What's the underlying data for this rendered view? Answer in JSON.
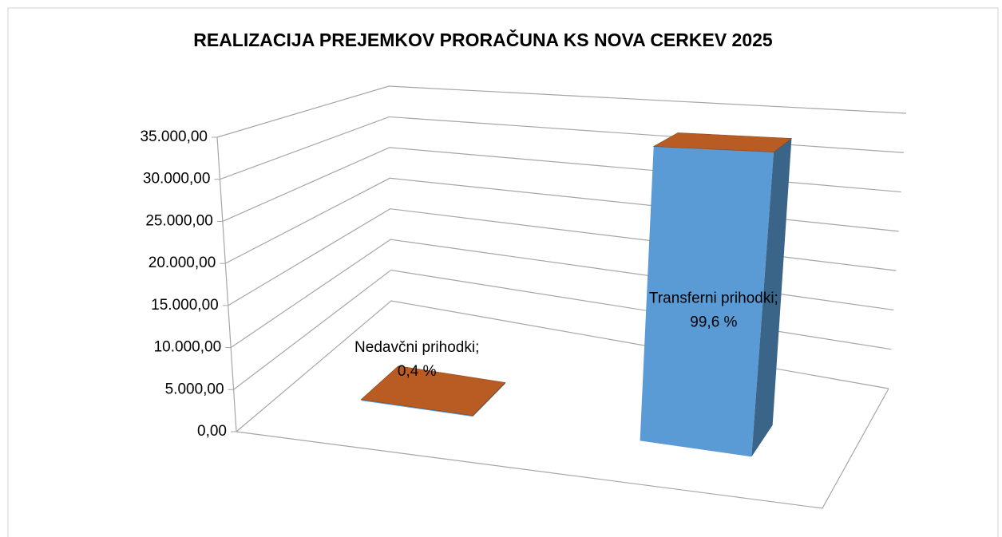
{
  "chart_data": {
    "type": "bar3d",
    "title": "REALIZACIJA PREJEMKOV PRORAČUNA KS NOVA CERKEV 2025",
    "categories": [
      "Nedavčni prihodki",
      "Transferni prihodki"
    ],
    "values": [
      137,
      34000
    ],
    "data_labels": [
      [
        "Nedavčni prihodki;",
        "0,4 %"
      ],
      [
        "Transferni prihodki;",
        "99,6 %"
      ]
    ],
    "front_color": "#5b9bd5",
    "side_color": "#3a6488",
    "top_color": "#b85c24",
    "ylim": [
      0,
      35000
    ],
    "yticks": [
      {
        "value": 0,
        "label": "0,00"
      },
      {
        "value": 5000,
        "label": "5.000,00"
      },
      {
        "value": 10000,
        "label": "10.000,00"
      },
      {
        "value": 15000,
        "label": "15.000,00"
      },
      {
        "value": 20000,
        "label": "20.000,00"
      },
      {
        "value": 25000,
        "label": "25.000,00"
      },
      {
        "value": 30000,
        "label": "30.000,00"
      },
      {
        "value": 35000,
        "label": "35.000,00"
      }
    ],
    "grid": true
  }
}
